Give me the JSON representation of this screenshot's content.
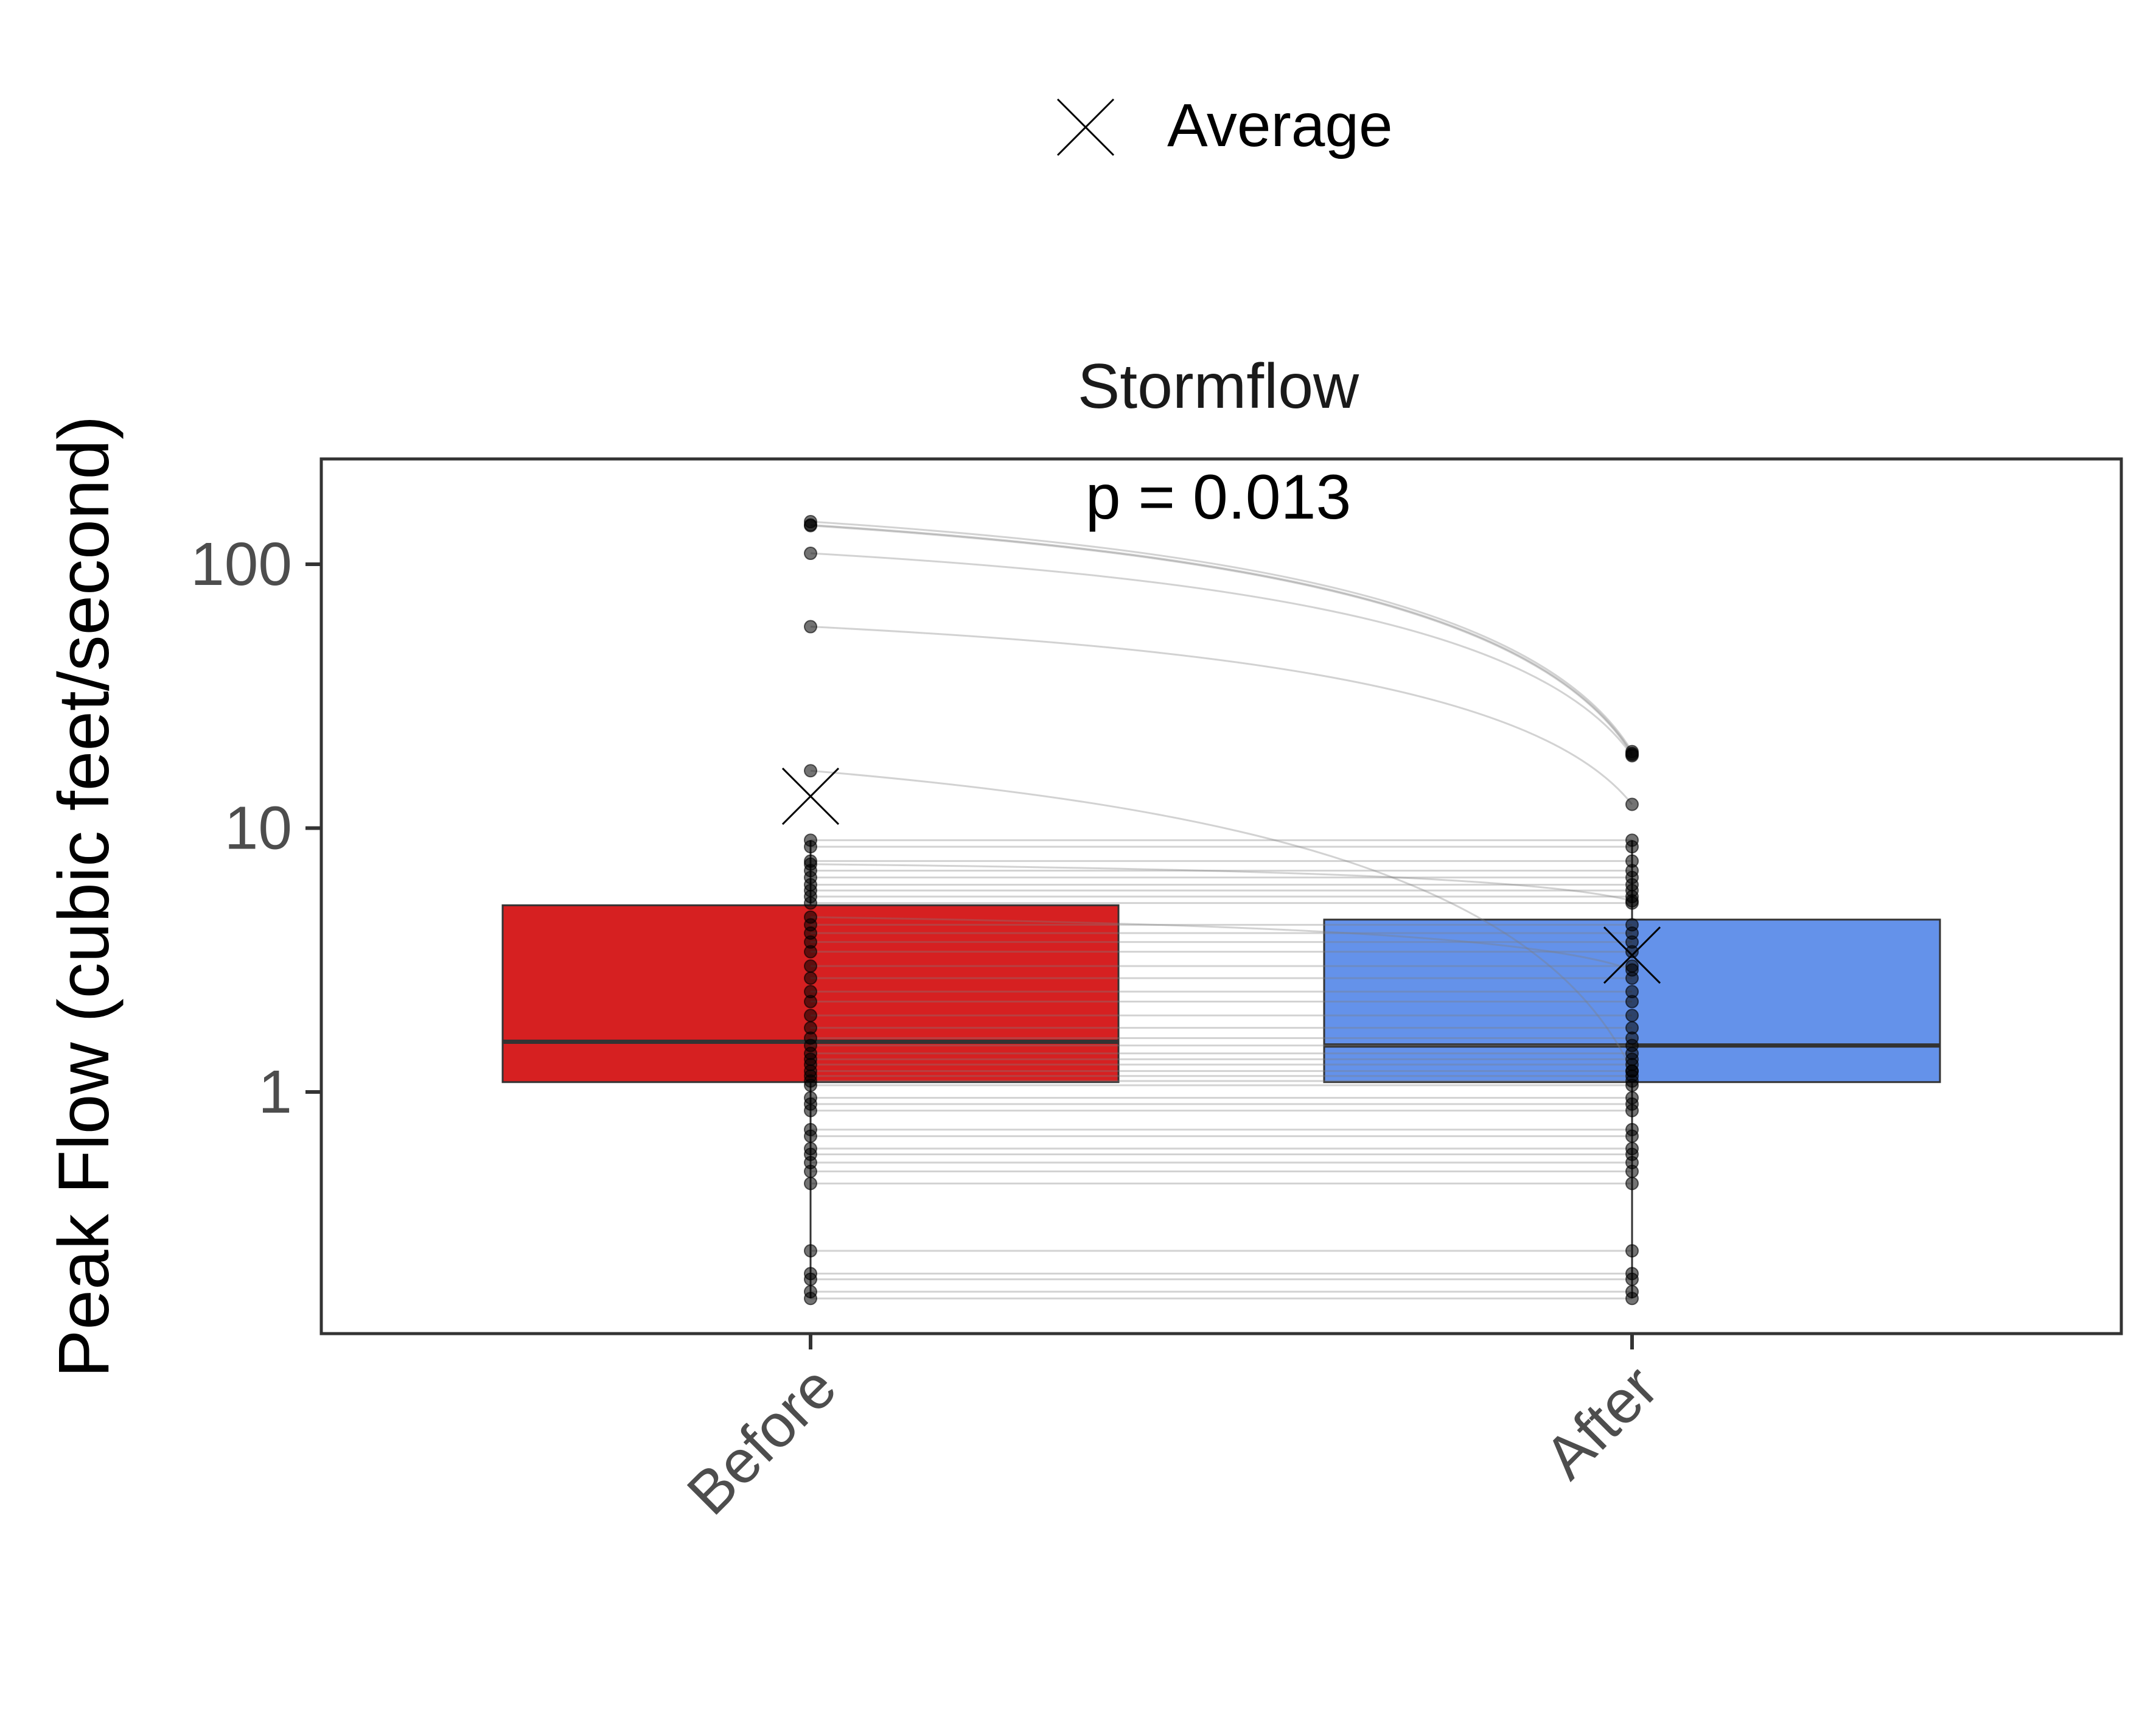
{
  "legend": {
    "marker_icon": "x-cross-icon",
    "label": "Average",
    "position": "top"
  },
  "facet": {
    "title": "Stormflow",
    "annotation": "p = 0.013"
  },
  "chart_data": {
    "type": "box",
    "ylabel": "Peak Flow (cubic feet/second)",
    "xlabel": "",
    "yscale": "log10",
    "ylim": [
      0.116,
      224
    ],
    "yticks": [
      1,
      10,
      100
    ],
    "ytick_labels": [
      "1",
      "10",
      "100"
    ],
    "categories": [
      "Before",
      "After"
    ],
    "grid": false,
    "colors": {
      "Before": "#d62021",
      "After": "#6492ea",
      "connector": "#7f7f7f",
      "point": "#000000"
    },
    "boxes": [
      {
        "group": "Before",
        "q1": 1.09,
        "median": 1.55,
        "q3": 5.1,
        "whisker_low": 0.165,
        "whisker_high": 9.0,
        "mean": 13.2
      },
      {
        "group": "After",
        "q1": 1.09,
        "median": 1.5,
        "q3": 4.5,
        "whisker_low": 0.165,
        "whisker_high": 9.0,
        "mean": 3.3
      }
    ],
    "pairs": [
      [
        145,
        19.5
      ],
      [
        141,
        19.2
      ],
      [
        140,
        19.0
      ],
      [
        110,
        18.8
      ],
      [
        58,
        12.3
      ],
      [
        16.5,
        1.2
      ],
      [
        9.0,
        9.0
      ],
      [
        8.5,
        8.5
      ],
      [
        7.5,
        7.5
      ],
      [
        7.3,
        5.3
      ],
      [
        6.9,
        6.9
      ],
      [
        6.5,
        6.5
      ],
      [
        6.1,
        6.1
      ],
      [
        5.8,
        5.8
      ],
      [
        5.5,
        5.5
      ],
      [
        5.2,
        5.2
      ],
      [
        4.6,
        2.9
      ],
      [
        4.3,
        4.3
      ],
      [
        4.0,
        4.0
      ],
      [
        3.7,
        3.7
      ],
      [
        3.4,
        3.4
      ],
      [
        3.0,
        3.0
      ],
      [
        2.7,
        2.7
      ],
      [
        2.4,
        2.4
      ],
      [
        2.2,
        2.2
      ],
      [
        1.95,
        1.95
      ],
      [
        1.75,
        1.75
      ],
      [
        1.6,
        1.6
      ],
      [
        1.5,
        1.5
      ],
      [
        1.4,
        1.4
      ],
      [
        1.33,
        1.33
      ],
      [
        1.27,
        1.27
      ],
      [
        1.2,
        1.2
      ],
      [
        1.15,
        1.15
      ],
      [
        1.1,
        1.1
      ],
      [
        1.06,
        1.06
      ],
      [
        0.95,
        0.95
      ],
      [
        0.9,
        0.9
      ],
      [
        0.85,
        0.85
      ],
      [
        0.72,
        0.72
      ],
      [
        0.68,
        0.68
      ],
      [
        0.61,
        0.61
      ],
      [
        0.58,
        0.58
      ],
      [
        0.54,
        0.54
      ],
      [
        0.5,
        0.5
      ],
      [
        0.45,
        0.45
      ],
      [
        0.25,
        0.25
      ],
      [
        0.205,
        0.205
      ],
      [
        0.195,
        0.195
      ],
      [
        0.175,
        0.175
      ],
      [
        0.165,
        0.165
      ]
    ]
  }
}
